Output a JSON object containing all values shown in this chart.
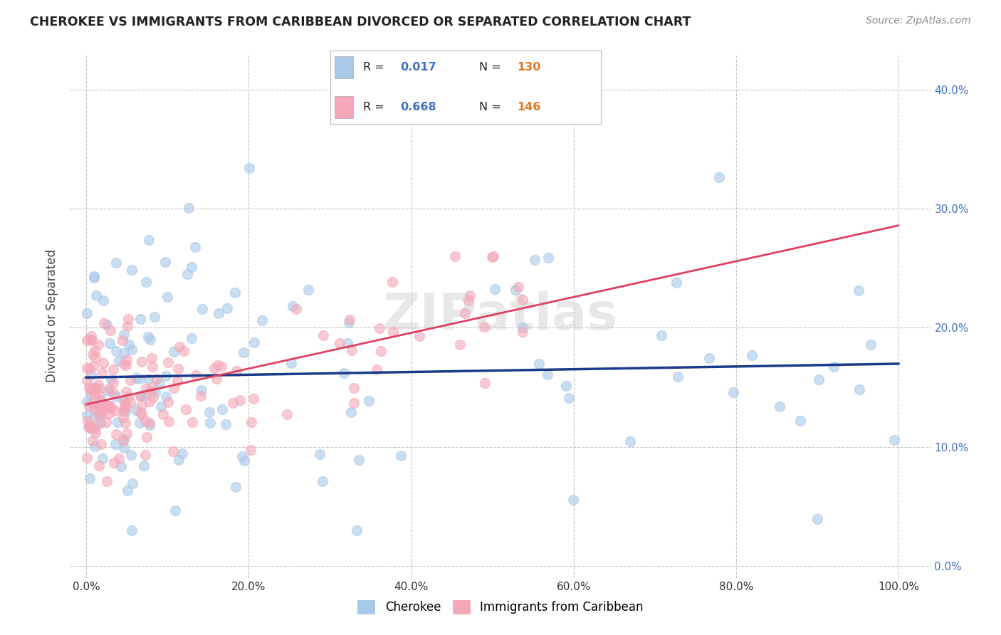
{
  "title": "CHEROKEE VS IMMIGRANTS FROM CARIBBEAN DIVORCED OR SEPARATED CORRELATION CHART",
  "source": "Source: ZipAtlas.com",
  "xlabel_vals": [
    0,
    20,
    40,
    60,
    80,
    100
  ],
  "ylabel": "Divorced or Separated",
  "ylabel_vals": [
    0,
    10,
    20,
    30,
    40
  ],
  "xlim": [
    -2,
    104
  ],
  "ylim": [
    -1,
    43
  ],
  "watermark": "ZIPatlas",
  "legend_label1": "Cherokee",
  "legend_label2": "Immigrants from Caribbean",
  "color_blue": "#a8c8e8",
  "color_pink": "#f4a8b8",
  "line_blue": "#1a3a8a",
  "line_pink": "#e04060",
  "background": "#ffffff",
  "grid_color": "#c8c8c8",
  "title_color": "#222222",
  "source_color": "#888888",
  "ytick_color": "#4472c4",
  "xtick_color": "#333333",
  "legend_R_color": "#4472c4",
  "legend_N_color": "#e07820",
  "cherokee_seed": 1234,
  "caribbean_seed": 5678
}
